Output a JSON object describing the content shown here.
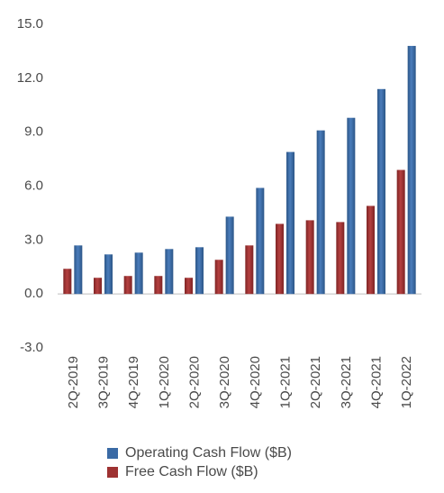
{
  "chart_data": {
    "type": "bar",
    "title": "",
    "xlabel": "",
    "ylabel": "",
    "ylim": [
      -3.0,
      15.0
    ],
    "yticks": [
      "15.0",
      "12.0",
      "9.0",
      "6.0",
      "3.0",
      "0.0",
      "-3.0"
    ],
    "ytick_values": [
      15,
      12,
      9,
      6,
      3,
      0,
      -3
    ],
    "grid": false,
    "legend_position": "bottom",
    "categories": [
      "2Q-2019",
      "3Q-2019",
      "4Q-2019",
      "1Q-2020",
      "2Q-2020",
      "3Q-2020",
      "4Q-2020",
      "1Q-2021",
      "2Q-2021",
      "3Q-2021",
      "4Q-2021",
      "1Q-2022"
    ],
    "series": [
      {
        "name": "Operating Cash Flow ($B)",
        "color": "#3a6aa5",
        "values": [
          2.7,
          2.2,
          2.3,
          2.5,
          2.6,
          4.3,
          5.9,
          7.9,
          9.1,
          9.8,
          11.4,
          13.8
        ]
      },
      {
        "name": "Free Cash Flow ($B)",
        "color": "#9e3232",
        "values": [
          1.4,
          0.9,
          1.0,
          1.0,
          0.9,
          1.9,
          2.7,
          3.9,
          4.1,
          4.0,
          4.9,
          6.9
        ]
      }
    ]
  }
}
